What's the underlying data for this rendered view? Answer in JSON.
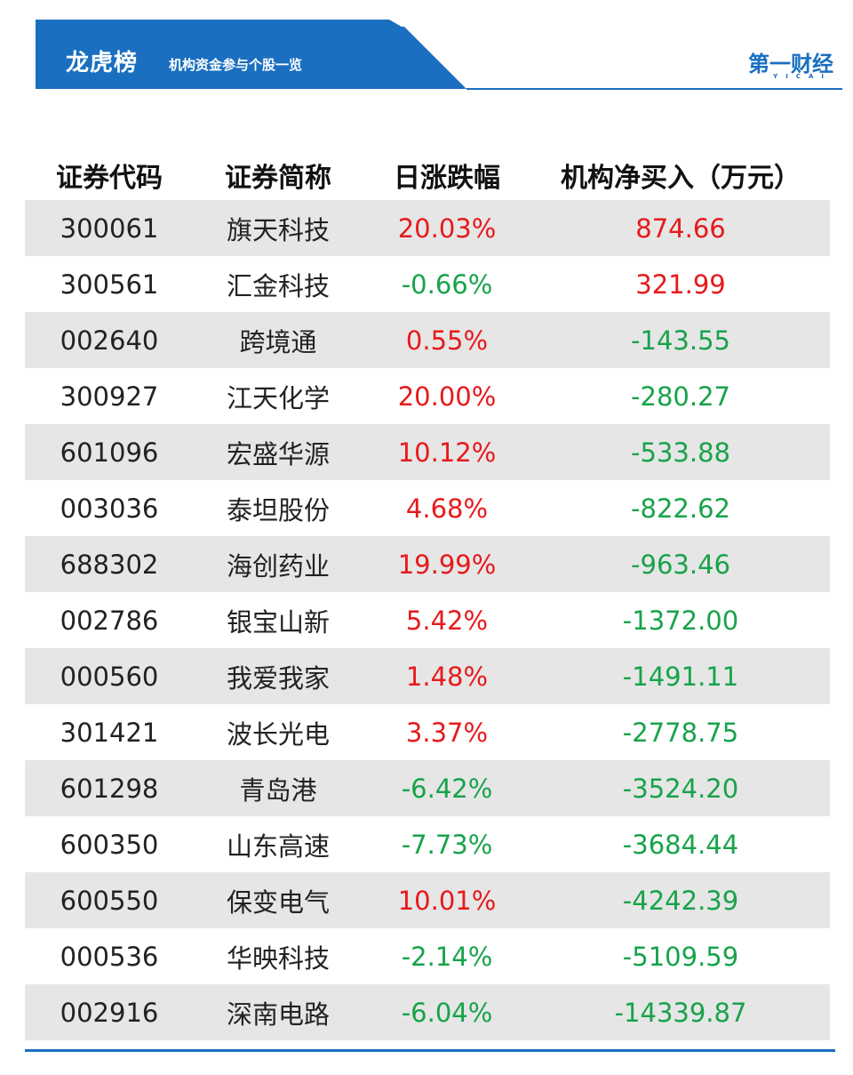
{
  "header": {
    "title": "龙虎榜",
    "subtitle": "机构资金参与个股一览",
    "brand": "第一财经",
    "brand_sub": "YICAI",
    "accent_color": "#1a6fc0"
  },
  "table": {
    "columns": [
      "证券代码",
      "证券简称",
      "日涨跌幅",
      "机构净买入（万元）"
    ],
    "rows": [
      {
        "code": "300061",
        "name": "旗天科技",
        "change": "20.03%",
        "net": "874.66",
        "change_color": "red",
        "net_color": "red"
      },
      {
        "code": "300561",
        "name": "汇金科技",
        "change": "-0.66%",
        "net": "321.99",
        "change_color": "green",
        "net_color": "red"
      },
      {
        "code": "002640",
        "name": "跨境通",
        "change": "0.55%",
        "net": "-143.55",
        "change_color": "red",
        "net_color": "green"
      },
      {
        "code": "300927",
        "name": "江天化学",
        "change": "20.00%",
        "net": "-280.27",
        "change_color": "red",
        "net_color": "green"
      },
      {
        "code": "601096",
        "name": "宏盛华源",
        "change": "10.12%",
        "net": "-533.88",
        "change_color": "red",
        "net_color": "green"
      },
      {
        "code": "003036",
        "name": "泰坦股份",
        "change": "4.68%",
        "net": "-822.62",
        "change_color": "red",
        "net_color": "green"
      },
      {
        "code": "688302",
        "name": "海创药业",
        "change": "19.99%",
        "net": "-963.46",
        "change_color": "red",
        "net_color": "green"
      },
      {
        "code": "002786",
        "name": "银宝山新",
        "change": "5.42%",
        "net": "-1372.00",
        "change_color": "red",
        "net_color": "green"
      },
      {
        "code": "000560",
        "name": "我爱我家",
        "change": "1.48%",
        "net": "-1491.11",
        "change_color": "red",
        "net_color": "green"
      },
      {
        "code": "301421",
        "name": "波长光电",
        "change": "3.37%",
        "net": "-2778.75",
        "change_color": "red",
        "net_color": "green"
      },
      {
        "code": "601298",
        "name": "青岛港",
        "change": "-6.42%",
        "net": "-3524.20",
        "change_color": "green",
        "net_color": "green"
      },
      {
        "code": "600350",
        "name": "山东高速",
        "change": "-7.73%",
        "net": "-3684.44",
        "change_color": "green",
        "net_color": "green"
      },
      {
        "code": "600550",
        "name": "保变电气",
        "change": "10.01%",
        "net": "-4242.39",
        "change_color": "red",
        "net_color": "green"
      },
      {
        "code": "000536",
        "name": "华映科技",
        "change": "-2.14%",
        "net": "-5109.59",
        "change_color": "green",
        "net_color": "green"
      },
      {
        "code": "002916",
        "name": "深南电路",
        "change": "-6.04%",
        "net": "-14339.87",
        "change_color": "green",
        "net_color": "green"
      }
    ]
  }
}
